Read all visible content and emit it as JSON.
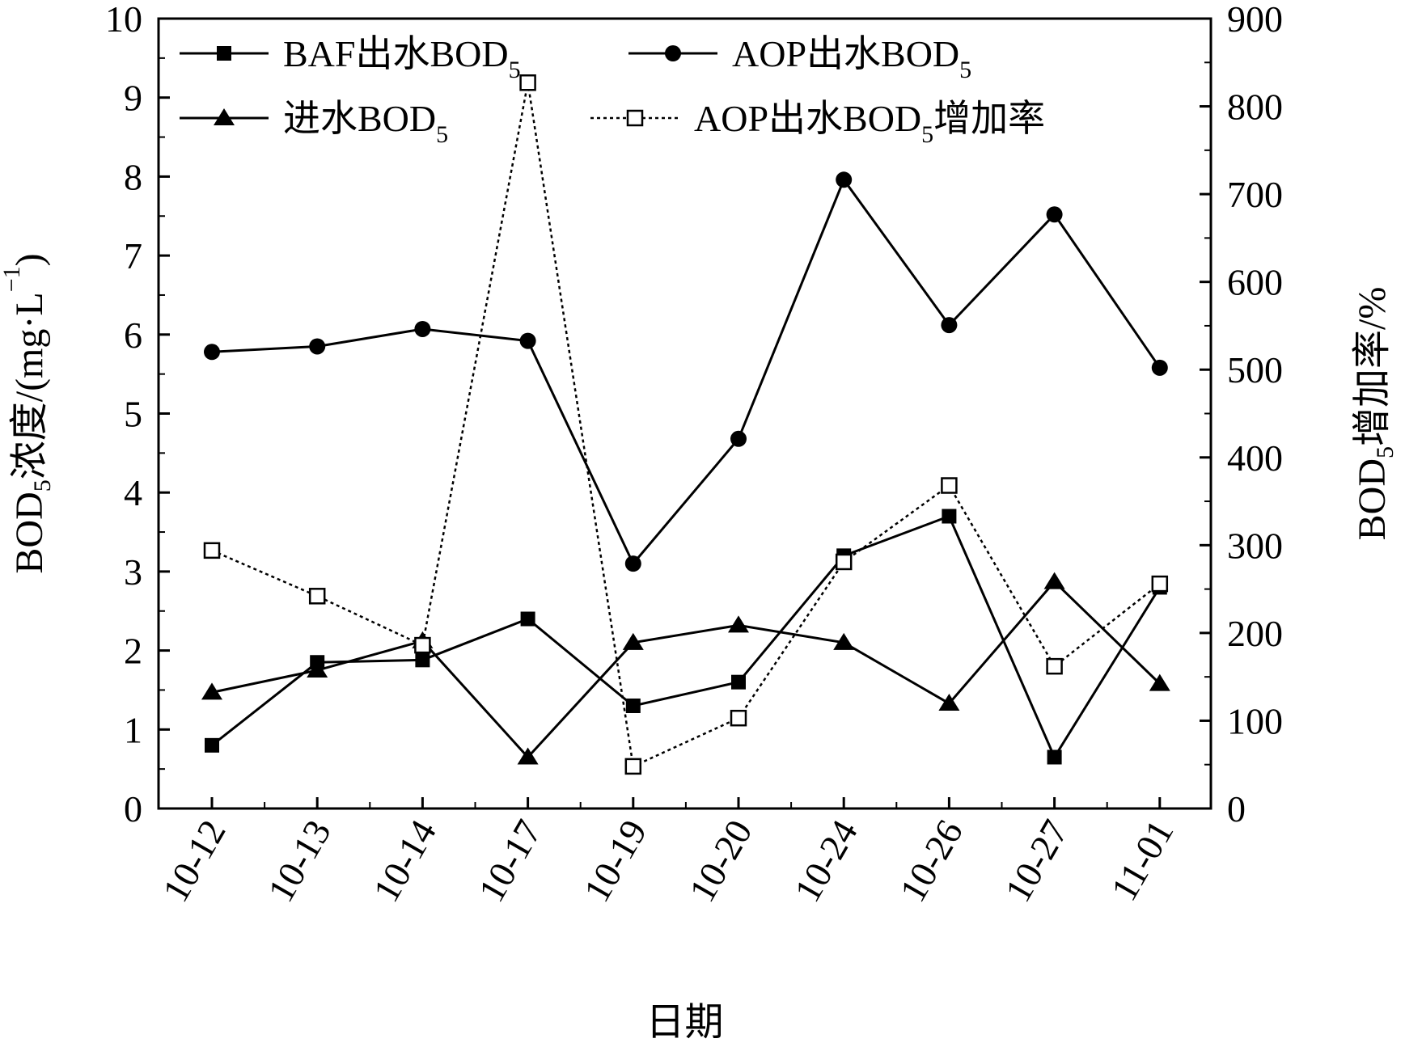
{
  "chart_data": {
    "type": "line",
    "categories": [
      "10-12",
      "10-13",
      "10-14",
      "10-17",
      "10-19",
      "10-20",
      "10-24",
      "10-26",
      "10-27",
      "11-01"
    ],
    "xlabel": "日期",
    "ylabel_left": {
      "main": "BOD",
      "sub": "5",
      "rest": "浓度/(mg·L",
      "sup": "−1",
      "close": ")"
    },
    "ylabel_right": {
      "main": "BOD",
      "sub": "5",
      "rest": "增加率/%"
    },
    "ylim_left": [
      0,
      10
    ],
    "ylim_right": [
      0,
      900
    ],
    "yticks_left": [
      0,
      1,
      2,
      3,
      4,
      5,
      6,
      7,
      8,
      9,
      10
    ],
    "yticks_right": [
      0,
      100,
      200,
      300,
      400,
      500,
      600,
      700,
      800,
      900
    ],
    "grid": false,
    "legend_placement": "top",
    "series": [
      {
        "name": "BAF出水BOD5",
        "label_main": "BAF出水BOD",
        "label_sub": "5",
        "label_after": "",
        "axis": "left",
        "marker": "square-filled",
        "dash": "solid",
        "values": [
          0.8,
          1.85,
          1.88,
          2.4,
          1.3,
          1.6,
          3.2,
          3.7,
          0.65,
          2.8
        ]
      },
      {
        "name": "AOP出水BOD5",
        "label_main": "AOP出水BOD",
        "label_sub": "5",
        "label_after": "",
        "axis": "left",
        "marker": "circle-filled",
        "dash": "solid",
        "values": [
          5.78,
          5.85,
          6.07,
          5.92,
          3.1,
          4.68,
          7.96,
          6.12,
          7.52,
          5.58
        ]
      },
      {
        "name": "进水BOD5",
        "label_main": "进水BOD",
        "label_sub": "5",
        "label_after": "",
        "axis": "left",
        "marker": "triangle-filled",
        "dash": "solid",
        "values": [
          1.47,
          1.75,
          2.12,
          0.65,
          2.1,
          2.32,
          2.1,
          1.33,
          2.87,
          1.58
        ]
      },
      {
        "name": "AOP出水BOD5增加率",
        "label_main": "AOP出水BOD",
        "label_sub": "5",
        "label_after": "增加率",
        "axis": "right",
        "marker": "square-open",
        "dash": "dotted",
        "values": [
          294,
          242,
          186,
          827,
          48,
          103,
          281,
          368,
          162,
          256
        ]
      }
    ]
  }
}
